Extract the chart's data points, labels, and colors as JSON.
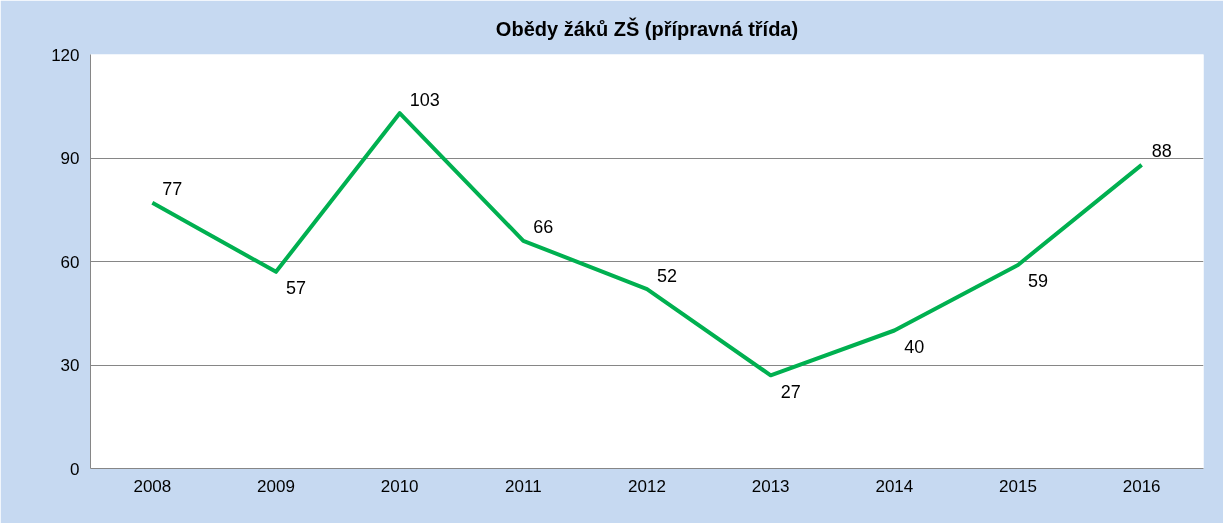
{
  "chart_data": {
    "type": "line",
    "title": "Obědy žáků ZŠ (přípravná třída)",
    "categories": [
      "2008",
      "2009",
      "2010",
      "2011",
      "2012",
      "2013",
      "2014",
      "2015",
      "2016"
    ],
    "series": [
      {
        "color": "#00b050",
        "values": [
          77,
          57,
          103,
          66,
          52,
          27,
          40,
          59,
          88
        ]
      }
    ],
    "ylim": [
      0,
      120
    ],
    "yticks": [
      0,
      30,
      60,
      90,
      120
    ],
    "grid": "y",
    "data_labels": true,
    "marker": "none",
    "line_style": "solid"
  }
}
